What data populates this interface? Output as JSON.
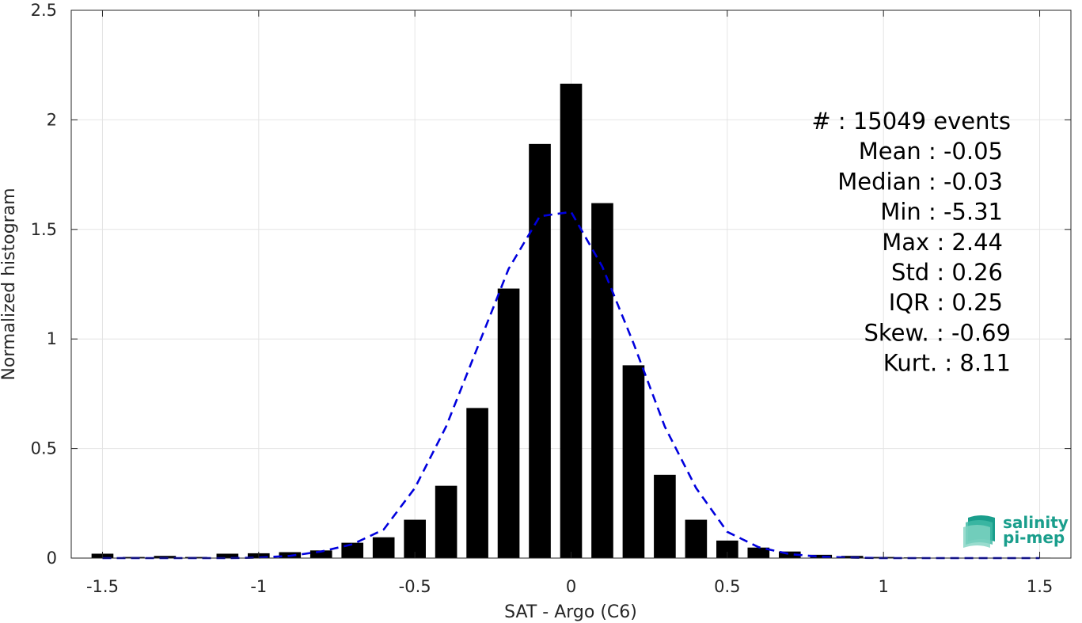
{
  "chart_data": {
    "type": "bar",
    "xlabel": "SAT - Argo (C6)",
    "ylabel": "Normalized histogram",
    "xlim": [
      -1.6,
      1.6
    ],
    "ylim": [
      0,
      2.5
    ],
    "xticks": [
      -1.5,
      -1,
      -0.5,
      0,
      0.5,
      1,
      1.5
    ],
    "xtick_labels": [
      "-1.5",
      "-1",
      "-0.5",
      "0",
      "0.5",
      "1",
      "1.5"
    ],
    "yticks": [
      0,
      0.5,
      1,
      1.5,
      2,
      2.5
    ],
    "ytick_labels": [
      "0",
      "0.5",
      "1",
      "1.5",
      "2",
      "2.5"
    ],
    "grid": true,
    "bar_width": 0.07,
    "bars": {
      "x": [
        -1.5,
        -1.4,
        -1.3,
        -1.2,
        -1.1,
        -1.0,
        -0.9,
        -0.8,
        -0.7,
        -0.6,
        -0.5,
        -0.4,
        -0.3,
        -0.2,
        -0.1,
        0.0,
        0.1,
        0.2,
        0.3,
        0.4,
        0.5,
        0.6,
        0.7,
        0.8,
        0.9,
        1.0,
        1.1,
        1.2,
        1.3,
        1.4,
        1.5
      ],
      "values": [
        0.02,
        0.005,
        0.01,
        0.005,
        0.02,
        0.022,
        0.027,
        0.035,
        0.07,
        0.095,
        0.175,
        0.33,
        0.685,
        1.23,
        1.89,
        2.165,
        1.62,
        0.88,
        0.38,
        0.175,
        0.08,
        0.048,
        0.03,
        0.015,
        0.01,
        0.005,
        0.003,
        0.002,
        0.002,
        0.002,
        0.002
      ],
      "color": "#000000"
    },
    "fit_curve": {
      "style": "dashed",
      "color": "#0000dd",
      "x": [
        -1.5,
        -1.4,
        -1.3,
        -1.2,
        -1.1,
        -1.0,
        -0.9,
        -0.8,
        -0.7,
        -0.6,
        -0.5,
        -0.4,
        -0.3,
        -0.2,
        -0.1,
        0.0,
        0.1,
        0.2,
        0.3,
        0.4,
        0.5,
        0.6,
        0.7,
        0.8,
        0.9,
        1.0,
        1.1,
        1.2,
        1.3,
        1.4,
        1.5
      ],
      "values": [
        0.0,
        0.0,
        0.0,
        0.0,
        0.0,
        0.002,
        0.01,
        0.03,
        0.063,
        0.13,
        0.32,
        0.6,
        0.96,
        1.32,
        1.56,
        1.58,
        1.33,
        0.98,
        0.6,
        0.32,
        0.12,
        0.05,
        0.018,
        0.006,
        0.002,
        0.0,
        0.0,
        0.0,
        0.0,
        0.0,
        0.0
      ]
    },
    "stats": [
      "#  : 15049 events",
      "Mean : -0.05",
      "Median : -0.03",
      "Min : -5.31",
      "Max : 2.44",
      "Std : 0.26",
      "IQR : 0.25",
      "Skew. : -0.69",
      "Kurt. : 8.11"
    ],
    "logo": {
      "line1": "salinity",
      "line2": "pi-mep",
      "color": "#1a9e8c"
    }
  }
}
